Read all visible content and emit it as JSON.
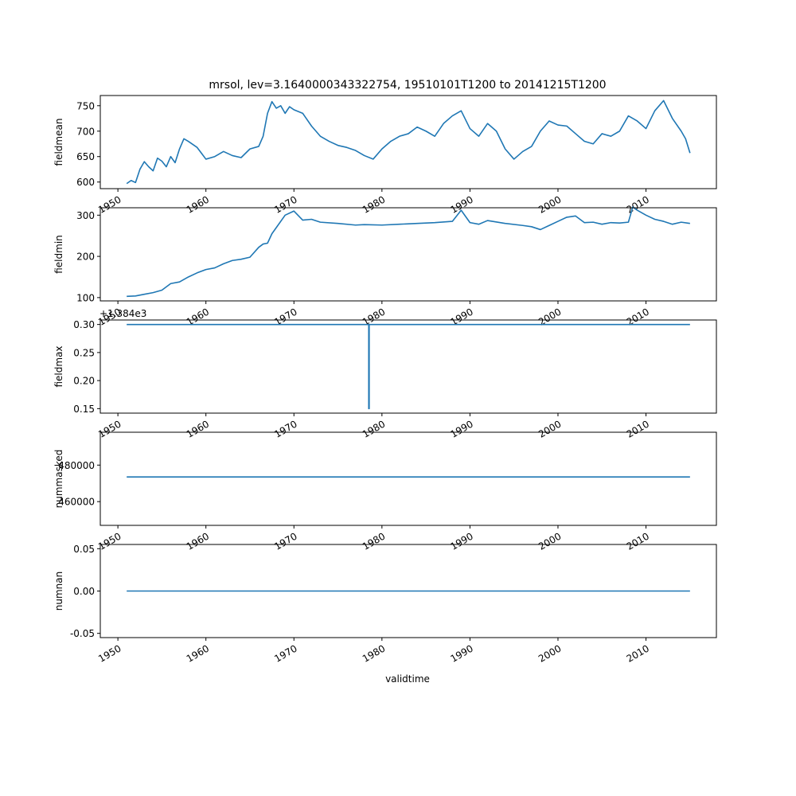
{
  "chart_data": {
    "type": "line",
    "title": "mrsol, lev=3.1640000343322754, 19510101T1200 to 20141215T1200",
    "xlabel": "validtime",
    "xlim": [
      1948.0,
      2018.0
    ],
    "x_ticks": [
      1950,
      1960,
      1970,
      1980,
      1990,
      2000,
      2010
    ],
    "x_tick_labels": [
      "1950",
      "1960",
      "1970",
      "1980",
      "1990",
      "2000",
      "2010"
    ],
    "line_color": "#1f77b4",
    "x_start": 1951.0,
    "x_end": 2015.0,
    "panels": [
      {
        "ylabel": "fieldmean",
        "ylim": [
          587,
          770
        ],
        "yticks": [
          600,
          650,
          700,
          750
        ],
        "ytick_labels": [
          "600",
          "650",
          "700",
          "750"
        ],
        "offset_text": "",
        "series": [
          {
            "x": [
              1951.0,
              1951.5,
              1952.0,
              1952.5,
              1953.0,
              1953.5,
              1954.0,
              1954.5,
              1955.0,
              1955.5,
              1956.0,
              1956.5,
              1957.0,
              1957.5,
              1958.0,
              1959.0,
              1960.0,
              1961.0,
              1962.0,
              1963.0,
              1964.0,
              1965.0,
              1966.0,
              1966.5,
              1967.0,
              1967.5,
              1968.0,
              1968.5,
              1969.0,
              1969.5,
              1970.0,
              1971.0,
              1972.0,
              1973.0,
              1974.0,
              1975.0,
              1976.0,
              1977.0,
              1978.0,
              1979.0,
              1980.0,
              1981.0,
              1982.0,
              1983.0,
              1984.0,
              1985.0,
              1986.0,
              1987.0,
              1988.0,
              1989.0,
              1990.0,
              1991.0,
              1992.0,
              1993.0,
              1994.0,
              1995.0,
              1996.0,
              1997.0,
              1998.0,
              1999.0,
              2000.0,
              2001.0,
              2002.0,
              2003.0,
              2004.0,
              2005.0,
              2006.0,
              2007.0,
              2008.0,
              2009.0,
              2010.0,
              2011.0,
              2012.0,
              2013.0,
              2014.0,
              2014.5,
              2015.0
            ],
            "y": [
              597,
              603,
              599,
              625,
              640,
              630,
              622,
              647,
              641,
              630,
              650,
              638,
              665,
              685,
              680,
              668,
              645,
              650,
              660,
              652,
              648,
              665,
              670,
              690,
              735,
              758,
              745,
              750,
              735,
              748,
              742,
              735,
              710,
              690,
              680,
              672,
              668,
              662,
              652,
              645,
              665,
              680,
              690,
              695,
              708,
              700,
              690,
              715,
              730,
              740,
              705,
              690,
              715,
              700,
              665,
              645,
              660,
              670,
              700,
              720,
              712,
              710,
              695,
              680,
              675,
              695,
              690,
              700,
              730,
              720,
              705,
              740,
              760,
              725,
              700,
              685,
              657
            ]
          }
        ]
      },
      {
        "ylabel": "fieldmin",
        "ylim": [
          92,
          318
        ],
        "yticks": [
          100,
          200,
          300
        ],
        "ytick_labels": [
          "100",
          "200",
          "300"
        ],
        "offset_text": "",
        "series": [
          {
            "x": [
              1951.0,
              1952.0,
              1953.0,
              1954.0,
              1955.0,
              1956.0,
              1957.0,
              1958.0,
              1959.0,
              1960.0,
              1961.0,
              1962.0,
              1963.0,
              1964.0,
              1965.0,
              1966.0,
              1966.5,
              1967.0,
              1967.5,
              1968.0,
              1969.0,
              1970.0,
              1971.0,
              1972.0,
              1973.0,
              1975.0,
              1977.0,
              1978.0,
              1980.0,
              1982.0,
              1984.0,
              1986.0,
              1988.0,
              1989.0,
              1990.0,
              1991.0,
              1992.0,
              1994.0,
              1996.0,
              1997.0,
              1998.0,
              1999.0,
              2000.0,
              2001.0,
              2002.0,
              2003.0,
              2004.0,
              2005.0,
              2006.0,
              2007.0,
              2008.0,
              2008.5,
              2009.0,
              2010.0,
              2011.0,
              2012.0,
              2013.0,
              2014.0,
              2015.0
            ],
            "y": [
              103,
              104,
              108,
              112,
              118,
              134,
              138,
              150,
              160,
              168,
              172,
              182,
              190,
              193,
              198,
              222,
              230,
              232,
              255,
              270,
              300,
              310,
              288,
              290,
              283,
              280,
              276,
              277,
              276,
              278,
              280,
              282,
              285,
              312,
              282,
              278,
              287,
              280,
              275,
              272,
              265,
              275,
              285,
              295,
              298,
              282,
              283,
              278,
              282,
              281,
              283,
              320,
              312,
              300,
              290,
              285,
              278,
              283,
              280
            ]
          }
        ]
      },
      {
        "ylabel": "fieldmax",
        "ylim": [
          0.142,
          0.308
        ],
        "yticks": [
          0.15,
          0.2,
          0.25,
          0.3
        ],
        "ytick_labels": [
          "0.15",
          "0.20",
          "0.25",
          "0.30"
        ],
        "offset_text": "+1.384e3",
        "series": [
          {
            "x": [
              1951.0,
              1978.5,
              1978.5,
              1978.55,
              1978.55,
              2015.0
            ],
            "y": [
              0.3,
              0.3,
              0.15,
              0.15,
              0.3,
              0.3
            ]
          }
        ]
      },
      {
        "ylabel": "nummasked",
        "ylim": [
          447000,
          498000
        ],
        "yticks": [
          460000,
          480000
        ],
        "ytick_labels": [
          "460000",
          "480000"
        ],
        "offset_text": "",
        "series": [
          {
            "x": [
              1951.0,
              2015.0
            ],
            "y": [
              473500,
              473500
            ]
          }
        ]
      },
      {
        "ylabel": "numnan",
        "ylim": [
          -0.055,
          0.055
        ],
        "yticks": [
          -0.05,
          0.0,
          0.05
        ],
        "ytick_labels": [
          "-0.05",
          "0.00",
          "0.05"
        ],
        "offset_text": "",
        "series": [
          {
            "x": [
              1951.0,
              2015.0
            ],
            "y": [
              0.0,
              0.0
            ]
          }
        ]
      }
    ]
  }
}
